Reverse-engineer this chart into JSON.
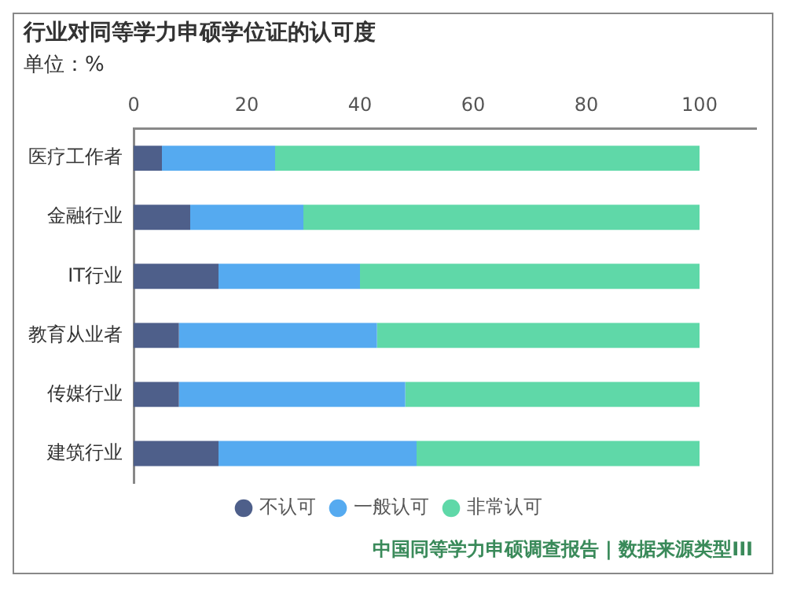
{
  "chart_data": {
    "type": "bar",
    "orientation": "horizontal",
    "stacked": true,
    "title": "行业对同等学力申硕学位证的认可度",
    "subtitle": "单位：%",
    "categories": [
      "医疗工作者",
      "金融行业",
      "IT行业",
      "教育从业者",
      "传媒行业",
      "建筑行业"
    ],
    "series": [
      {
        "name": "不认可",
        "color": "#4e5f8a",
        "values": [
          5,
          10,
          15,
          8,
          8,
          15
        ]
      },
      {
        "name": "一般认可",
        "color": "#55aaf0",
        "values": [
          20,
          20,
          25,
          35,
          40,
          35
        ]
      },
      {
        "name": "非常认可",
        "color": "#5fd8a8",
        "values": [
          75,
          70,
          60,
          57,
          52,
          50
        ]
      }
    ],
    "xlim": [
      0,
      110
    ],
    "xticks": [
      0,
      20,
      40,
      60,
      80,
      100
    ],
    "grid": false,
    "legend": "bottom",
    "marker": "circle",
    "annotations": [
      "中国同等学力申硕调查报告 | 数据来源类型III"
    ]
  }
}
